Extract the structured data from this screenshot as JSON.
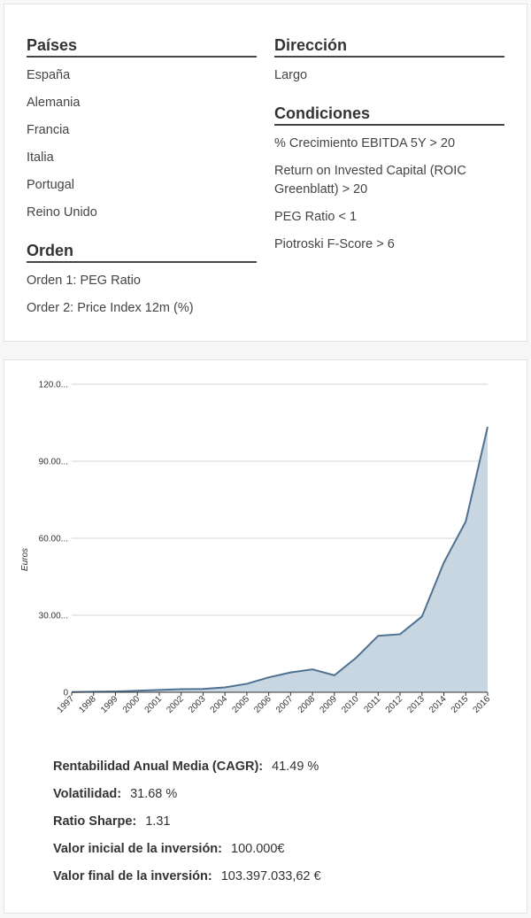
{
  "criteria": {
    "countries": {
      "title": "Países",
      "items": [
        "España",
        "Alemania",
        "Francia",
        "Italia",
        "Portugal",
        "Reino Unido"
      ]
    },
    "order": {
      "title": "Orden",
      "items": [
        "Orden 1: PEG Ratio",
        "Order 2: Price Index 12m (%)"
      ]
    },
    "direction": {
      "title": "Dirección",
      "items": [
        "Largo"
      ]
    },
    "conditions": {
      "title": "Condiciones",
      "items": [
        "% Crecimiento EBITDA 5Y > 20",
        "Return on Invested Capital (ROIC Greenblatt) > 20",
        "PEG Ratio < 1",
        "Piotroski F-Score > 6"
      ]
    }
  },
  "chart_data": {
    "type": "area",
    "title": "",
    "xlabel": "",
    "ylabel": "Euros",
    "x": [
      "1997",
      "1998",
      "1999",
      "2000",
      "2001",
      "2002",
      "2003",
      "2004",
      "2005",
      "2006",
      "2007",
      "2008",
      "2009",
      "2010",
      "2011",
      "2012",
      "2013",
      "2014",
      "2015",
      "2016"
    ],
    "series": [
      {
        "name": "Euros",
        "values": [
          0.1,
          0.2,
          0.3,
          0.6,
          0.9,
          1.2,
          1.3,
          1.9,
          3.3,
          5.8,
          7.7,
          8.9,
          6.6,
          13.5,
          22.0,
          22.6,
          29.5,
          50.5,
          66.5,
          103.4
        ]
      }
    ],
    "ylim": [
      0,
      120
    ],
    "yticks": [
      0,
      30,
      60,
      90,
      120
    ],
    "ytick_labels": [
      "0",
      "30.00...",
      "60.00...",
      "90.00...",
      "120.0..."
    ],
    "grid": true,
    "colors": {
      "line": "#4f7192",
      "fill": "#c8d6e2",
      "grid": "#d4d4d4",
      "axis": "#333333"
    }
  },
  "stats": [
    {
      "label": "Rentabilidad Anual Media (CAGR):",
      "value": "41.49 %"
    },
    {
      "label": "Volatilidad:",
      "value": "31.68 %"
    },
    {
      "label": "Ratio Sharpe:",
      "value": "1.31"
    },
    {
      "label": "Valor inicial de la inversión:",
      "value": "100.000€"
    },
    {
      "label": "Valor final de la inversión:",
      "value": "103.397.033,62 €"
    }
  ]
}
